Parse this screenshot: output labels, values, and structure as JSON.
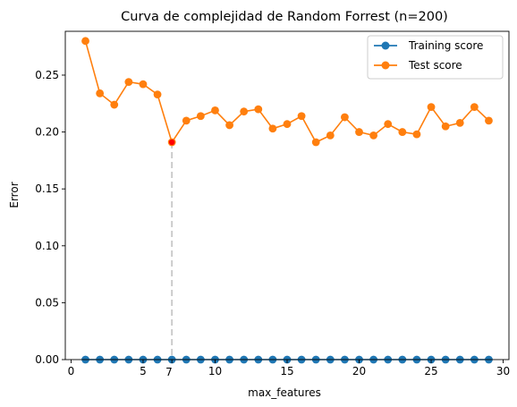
{
  "chart_data": {
    "type": "line",
    "title": "Curva de complejidad de Random Forrest (n=200)",
    "xlabel": "max_features",
    "ylabel": "Error",
    "xlim": [
      -0.4,
      30.4
    ],
    "ylim": [
      0,
      0.2885
    ],
    "xticks": [
      0,
      5,
      10,
      15,
      20,
      25,
      30
    ],
    "yticks": [
      0.0,
      0.05,
      0.1,
      0.15,
      0.2,
      0.25
    ],
    "ytick_labels": [
      "0.00",
      "0.05",
      "0.10",
      "0.15",
      "0.20",
      "0.25"
    ],
    "x": [
      1,
      2,
      3,
      4,
      5,
      6,
      7,
      8,
      9,
      10,
      11,
      12,
      13,
      14,
      15,
      16,
      17,
      18,
      19,
      20,
      21,
      22,
      23,
      24,
      25,
      26,
      27,
      28,
      29
    ],
    "series": [
      {
        "name": "Training score",
        "color": "#1f77b4",
        "values": [
          0,
          0,
          0,
          0,
          0,
          0,
          0,
          0,
          0,
          0,
          0,
          0,
          0,
          0,
          0,
          0,
          0,
          0,
          0,
          0,
          0,
          0,
          0,
          0,
          0,
          0,
          0,
          0,
          0
        ]
      },
      {
        "name": "Test score",
        "color": "#ff7f0e",
        "values": [
          0.28,
          0.234,
          0.224,
          0.244,
          0.242,
          0.233,
          0.191,
          0.21,
          0.214,
          0.219,
          0.206,
          0.218,
          0.22,
          0.203,
          0.207,
          0.214,
          0.191,
          0.197,
          0.213,
          0.2,
          0.197,
          0.207,
          0.2,
          0.198,
          0.222,
          0.205,
          0.208,
          0.222,
          0.21
        ]
      }
    ],
    "best": {
      "x": 7,
      "y": 0.191,
      "label": "7",
      "marker_color": "#ff0000",
      "line_color": "#c8c8c8"
    },
    "legend_position": "top-right",
    "grid": false
  }
}
